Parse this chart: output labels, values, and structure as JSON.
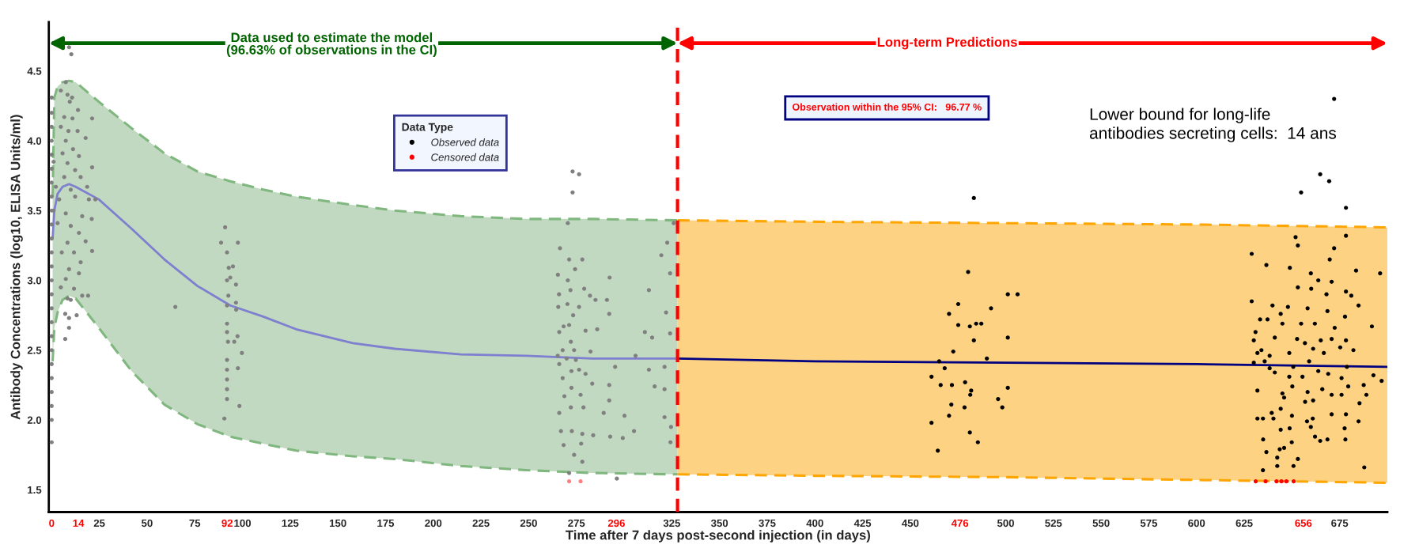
{
  "chart_data": {
    "type": "scatter",
    "xlabel": "Time after 7 days post-second injection (in days)",
    "ylabel": "Antibody Concentrations (log10, ELISA Units/ml)",
    "legend_title": "Data Type",
    "legend": "top",
    "marker": "circle",
    "grid": false,
    "xlim": [
      -1.5,
      700
    ],
    "ylim": [
      1.34,
      4.85
    ],
    "xticks": [
      {
        "value": 0,
        "label": "0"
      },
      {
        "value": 14,
        "label": "14"
      },
      25,
      50,
      75,
      {
        "value": 92,
        "label": "92"
      },
      100,
      125,
      150,
      175,
      200,
      225,
      250,
      275,
      {
        "value": 296,
        "label": "296"
      },
      325,
      350,
      375,
      400,
      425,
      450,
      {
        "value": 476,
        "label": "476"
      },
      500,
      525,
      550,
      575,
      600,
      625,
      {
        "value": 656,
        "label": "656"
      },
      675
    ],
    "yticks": [
      1.5,
      {
        "value": 2,
        "label": "2.0"
      },
      2.5,
      {
        "value": 3,
        "label": "3.0"
      },
      3.5,
      {
        "value": 4,
        "label": "4.0"
      },
      4.5
    ],
    "ref_lines": [
      {
        "axis": "x",
        "value": 328,
        "color": "#ff0000",
        "line_style": "dashed"
      }
    ],
    "annotations": [
      "Data used to estimate the model\n(96.63% of observations in the CI)",
      "Long-term Predictions",
      "Observation within the 95% CI:   96.77 %",
      "Lower bound for long-life\nantibodies secreting cells:  14 ans"
    ],
    "series": [
      {
        "color": "#808080",
        "x": [
          0,
          0,
          0,
          0,
          0,
          0,
          0,
          0,
          0,
          0,
          0,
          0,
          0,
          0,
          0,
          0,
          0,
          0,
          0,
          0,
          0,
          0,
          0,
          0,
          0,
          1,
          1,
          7.4,
          9.1,
          10.3,
          4.8,
          8.3,
          10.7,
          9.5,
          13.8,
          6.6,
          10.9,
          21.2,
          4.8,
          8.8,
          13.6,
          7.4,
          17.8,
          11.2,
          5.7,
          14.3,
          8.3,
          21.2,
          12.3,
          6.6,
          15.2,
          2.2,
          10,
          18.6,
          3.9,
          12.3,
          19.5,
          22.9,
          7.4,
          16,
          3.1,
          10,
          21,
          14.3,
          8.3,
          17.8,
          11.7,
          21.2,
          5.3,
          15.2,
          9.1,
          14.3,
          7.4,
          11.7,
          4.8,
          16,
          19.1,
          8.3,
          10,
          7.1,
          13.1,
          9.1,
          9.1,
          7.1,
          64.8,
          88.8,
          90.9,
          97.6,
          91.9,
          92.8,
          95,
          91.9,
          93.6,
          96.6,
          92.6,
          91.9,
          96.6,
          96.7,
          91.9,
          91.9,
          92.4,
          95.7,
          97.4,
          99.7,
          91.9,
          91.9,
          97.6,
          91.9,
          91.9,
          91.9,
          98.4,
          90.5,
          273,
          276.4,
          273,
          270.5,
          266.4,
          271.2,
          278.1,
          274.3,
          265.3,
          270.5,
          292.4,
          279.1,
          265.9,
          271.9,
          282.1,
          285,
          291,
          276.4,
          265.5,
          270.3,
          273.3,
          292.2,
          268.3,
          271.2,
          279.8,
          285.9,
          310.9,
          266,
          272.1,
          314.7,
          324.1,
          267.8,
          273.8,
          282.4,
          265.2,
          269.9,
          274.7,
          306,
          266,
          272.4,
          276.4,
          295.3,
          267.8,
          279.8,
          313,
          321.2,
          272.4,
          283.3,
          292.2,
          316,
          268.7,
          277.2,
          292.2,
          321.2,
          272.1,
          278.7,
          266,
          289.3,
          300.2,
          321.2,
          266.9,
          272.6,
          278.1,
          283.8,
          292.7,
          299.3,
          305.2,
          324.6,
          268.3,
          277.5,
          273.8,
          278.1,
          271.2,
          296.2,
          326,
          322.6,
          319.5,
          313,
          322,
          324.1,
          324.3
        ],
        "values": [
          4.31,
          4.2,
          4.1,
          4.0,
          3.9,
          3.8,
          3.7,
          3.6,
          3.5,
          3.4,
          3.3,
          3.2,
          3.1,
          3.0,
          2.9,
          2.8,
          2.7,
          2.6,
          2.5,
          2.4,
          2.3,
          2.2,
          2.1,
          2.0,
          1.84,
          3.85,
          3.5,
          4.42,
          4.67,
          4.62,
          4.36,
          4.33,
          4.31,
          4.28,
          4.22,
          4.17,
          4.16,
          4.16,
          4.1,
          4.07,
          4.07,
          4.0,
          4.02,
          3.94,
          3.91,
          3.89,
          3.84,
          3.81,
          3.79,
          3.74,
          3.74,
          3.67,
          3.65,
          3.67,
          3.58,
          3.6,
          3.58,
          3.58,
          3.48,
          3.46,
          3.41,
          3.39,
          3.44,
          3.34,
          3.27,
          3.28,
          3.2,
          3.21,
          3.2,
          3.13,
          3.08,
          3.05,
          3.01,
          2.94,
          2.95,
          2.89,
          2.89,
          2.87,
          2.86,
          2.76,
          2.75,
          2.73,
          2.66,
          2.58,
          2.81,
          3.27,
          3.38,
          3.27,
          3.2,
          3.09,
          3.1,
          3.0,
          3.02,
          2.97,
          2.89,
          2.82,
          2.84,
          2.79,
          2.69,
          2.63,
          2.56,
          2.56,
          2.6,
          2.48,
          2.43,
          2.36,
          2.37,
          2.29,
          2.22,
          2.15,
          2.1,
          2.01,
          3.78,
          3.76,
          3.63,
          3.41,
          3.23,
          3.15,
          3.15,
          3.08,
          3.04,
          3.0,
          3.02,
          2.94,
          2.9,
          2.93,
          2.89,
          2.86,
          2.86,
          2.81,
          2.81,
          2.83,
          2.75,
          2.76,
          2.67,
          2.68,
          2.64,
          2.65,
          2.63,
          2.63,
          2.56,
          2.59,
          2.62,
          2.5,
          2.5,
          2.49,
          2.46,
          2.44,
          2.43,
          2.46,
          2.4,
          2.35,
          2.36,
          2.38,
          2.3,
          2.33,
          2.36,
          2.38,
          2.23,
          2.26,
          2.25,
          2.24,
          2.17,
          2.18,
          2.14,
          2.22,
          2.09,
          2.09,
          2.05,
          2.05,
          2.03,
          2.02,
          1.92,
          1.92,
          1.9,
          1.89,
          1.88,
          1.87,
          1.92,
          1.95,
          1.82,
          1.83,
          1.75,
          1.7,
          1.62,
          1.58,
          3.41,
          3.27,
          3.18,
          2.93,
          2.77,
          3.05,
          1.84
        ]
      },
      {
        "name": "Observed data",
        "color": "#000000",
        "x": [
          483.3,
          480.3,
          470.3,
          475.1,
          475.1,
          481.2,
          484.5,
          487.2,
          492.3,
          501.1,
          506.2,
          483.3,
          501.1,
          472.5,
          490.1,
          465.1,
          468,
          461.1,
          465.9,
          471.8,
          478.7,
          481.9,
          481.4,
          501.1,
          496,
          498.2,
          471.5,
          478.4,
          470.3,
          461.1,
          481.2,
          485.4,
          464.4,
          672.1,
          664.8,
          669.5,
          654.8,
          678.3,
          678.3,
          651.9,
          653.1,
          628.9,
          672.1,
          669.8,
          636.6,
          648.9,
          683.6,
          696.2,
          659.9,
          663.8,
          670.8,
          653.1,
          660.1,
          678.3,
          668.1,
          681.1,
          628.9,
          639.8,
          647.9,
          684.9,
          658.2,
          668.6,
          677.8,
          633.3,
          637.2,
          644.1,
          645,
          654.8,
          662,
          672.4,
          691.9,
          630.9,
          641,
          652.7,
          656.8,
          665.1,
          670.8,
          678.3,
          630,
          631.9,
          634,
          638.3,
          648.6,
          661.1,
          666.7,
          675.3,
          682.2,
          630,
          635.7,
          650.7,
          659,
          678.8,
          638.3,
          641,
          648.6,
          655.5,
          663.8,
          669,
          676,
          692.7,
          697,
          631.9,
          645,
          650.2,
          658.2,
          665.9,
          670.8,
          679.5,
          687.6,
          689,
          645.9,
          656.9,
          661.1,
          676,
          685.4,
          644.1,
          639.4,
          631.9,
          634.8,
          640.3,
          650,
          660.9,
          670.8,
          678.3,
          684.9,
          657.9,
          644.1,
          648.8,
          659.9,
          677.6,
          662.1,
          634.9,
          643.6,
          645.9,
          649.9,
          664.8,
          668.6,
          678,
          636.6,
          642.3,
          653.1,
          650.8,
          642.3,
          634.8,
          687.9
        ],
        "values": [
          3.59,
          3.06,
          2.76,
          2.83,
          2.68,
          2.67,
          2.69,
          2.69,
          2.8,
          2.9,
          2.9,
          2.57,
          2.59,
          2.49,
          2.44,
          2.42,
          2.37,
          2.31,
          2.25,
          2.25,
          2.27,
          2.21,
          2.18,
          2.23,
          2.15,
          2.09,
          2.11,
          2.09,
          2.03,
          1.98,
          1.91,
          1.84,
          1.78,
          4.3,
          3.76,
          3.71,
          3.63,
          3.52,
          3.32,
          3.31,
          3.25,
          3.19,
          3.23,
          3.15,
          3.11,
          3.09,
          3.07,
          3.05,
          3.05,
          3.0,
          2.99,
          2.95,
          2.94,
          2.92,
          2.9,
          2.89,
          2.85,
          2.82,
          2.81,
          2.82,
          2.8,
          2.78,
          2.74,
          2.72,
          2.72,
          2.76,
          2.69,
          2.69,
          2.69,
          2.66,
          2.67,
          2.63,
          2.59,
          2.58,
          2.55,
          2.57,
          2.58,
          2.57,
          2.57,
          2.48,
          2.5,
          2.46,
          2.48,
          2.51,
          2.48,
          2.52,
          2.5,
          2.41,
          2.42,
          2.38,
          2.42,
          2.38,
          2.37,
          2.34,
          2.31,
          2.31,
          2.35,
          2.33,
          2.3,
          2.32,
          2.28,
          2.21,
          2.19,
          2.24,
          2.2,
          2.22,
          2.18,
          2.24,
          2.25,
          2.18,
          2.16,
          2.13,
          2.14,
          2.18,
          2.12,
          2.08,
          2.05,
          2.01,
          2.01,
          2.01,
          2.03,
          2.01,
          2.04,
          2.04,
          1.99,
          1.99,
          1.93,
          1.94,
          1.95,
          1.94,
          1.88,
          1.86,
          1.79,
          1.8,
          1.84,
          1.85,
          1.86,
          1.86,
          1.77,
          1.73,
          1.72,
          1.67,
          1.67,
          1.64,
          1.66
        ]
      },
      {
        "color": "#ff8080",
        "x": [
          271.2,
          277.2
        ],
        "values": [
          1.56,
          1.56
        ]
      },
      {
        "name": "Censored data",
        "color": "#ff0000",
        "x": [
          631,
          636.2,
          641.9,
          644.5,
          647.1,
          650.9
        ],
        "values": [
          1.56,
          1.56,
          1.56,
          1.56,
          1.56,
          1.56
        ]
      },
      {
        "type": "line",
        "marker": "none",
        "line_style": "dashed",
        "color": "#7fb77f",
        "x": [
          0.5,
          1.4,
          3.1,
          5.7,
          9.1,
          12.6,
          24.7,
          41.9,
          59.1,
          76.4,
          93.6,
          110.9,
          128.1,
          157.8,
          179.8,
          214.3,
          248.8,
          283.3,
          328
        ],
        "values": [
          3.6,
          4.31,
          4.39,
          4.42,
          4.43,
          4.42,
          4.28,
          4.09,
          3.91,
          3.78,
          3.71,
          3.65,
          3.6,
          3.54,
          3.5,
          3.46,
          3.44,
          3.44,
          3.43
        ]
      },
      {
        "type": "line",
        "marker": "none",
        "line_style": "dashed",
        "color": "#7fb77f",
        "x": [
          0.5,
          1.4,
          3.1,
          5.7,
          9.1,
          12.6,
          24.7,
          41.9,
          59.1,
          76.4,
          93.6,
          110.9,
          128.1,
          157.8,
          179.8,
          214.3,
          248.8,
          283.3,
          328
        ],
        "values": [
          2.42,
          2.66,
          2.77,
          2.86,
          2.89,
          2.87,
          2.66,
          2.35,
          2.11,
          1.97,
          1.88,
          1.83,
          1.78,
          1.74,
          1.72,
          1.67,
          1.64,
          1.62,
          1.61
        ]
      },
      {
        "type": "line",
        "marker": "none",
        "line_style": "dashed",
        "color": "#ffa500",
        "x": [
          328,
          400,
          500,
          600,
          700
        ],
        "values": [
          3.43,
          3.42,
          3.41,
          3.4,
          3.38
        ]
      },
      {
        "type": "line",
        "marker": "none",
        "line_style": "dashed",
        "color": "#ffa500",
        "x": [
          328,
          400,
          500,
          600,
          700
        ],
        "values": [
          1.61,
          1.6,
          1.59,
          1.57,
          1.55
        ]
      },
      {
        "type": "line",
        "marker": "none",
        "color": "#7f7fd0",
        "x": [
          0.5,
          1.4,
          3.1,
          5.7,
          9.1,
          12.6,
          24.7,
          41.9,
          59.1,
          76.4,
          93.6,
          110.9,
          128.1,
          157.8,
          179.8,
          214.3,
          248.8,
          283.3,
          328
        ],
        "values": [
          3.3,
          3.5,
          3.62,
          3.67,
          3.69,
          3.67,
          3.58,
          3.37,
          3.15,
          2.96,
          2.82,
          2.74,
          2.65,
          2.55,
          2.51,
          2.47,
          2.46,
          2.44,
          2.44
        ],
        "upper": [
          3.6,
          4.31,
          4.39,
          4.42,
          4.43,
          4.42,
          4.28,
          4.09,
          3.91,
          3.78,
          3.71,
          3.65,
          3.6,
          3.54,
          3.5,
          3.46,
          3.44,
          3.44,
          3.43
        ],
        "lower": [
          2.42,
          2.66,
          2.77,
          2.86,
          2.89,
          2.87,
          2.66,
          2.35,
          2.11,
          1.97,
          1.88,
          1.83,
          1.78,
          1.74,
          1.72,
          1.67,
          1.64,
          1.62,
          1.61
        ]
      },
      {
        "type": "line",
        "marker": "none",
        "color": "#000080",
        "x": [
          328,
          400,
          500,
          600,
          700
        ],
        "values": [
          2.44,
          2.42,
          2.41,
          2.4,
          2.38
        ],
        "upper": [
          3.43,
          3.42,
          3.41,
          3.4,
          3.38
        ],
        "lower": [
          1.61,
          1.6,
          1.59,
          1.57,
          1.55
        ]
      }
    ]
  }
}
